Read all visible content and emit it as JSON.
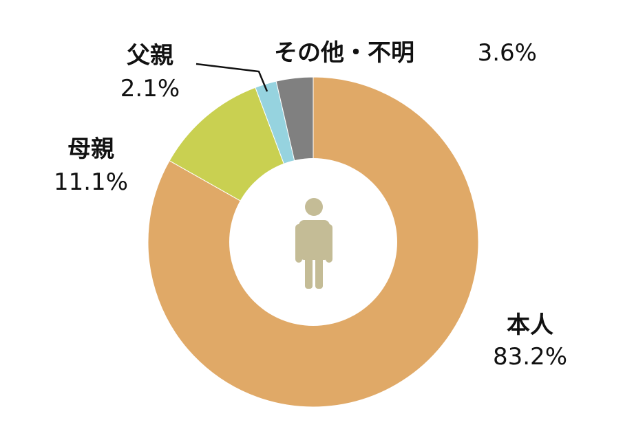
{
  "chart_data": {
    "type": "pie",
    "donut": true,
    "categories": [
      "本人",
      "母親",
      "父親",
      "その他・不明"
    ],
    "values": [
      83.2,
      11.1,
      2.1,
      3.6
    ],
    "value_labels": [
      "83.2%",
      "11.1%",
      "2.1%",
      "3.6%"
    ],
    "colors": [
      "#E0A967",
      "#C9D051",
      "#96D3DF",
      "#808080"
    ],
    "start": "top",
    "direction": "clockwise",
    "center_icon": "person-icon",
    "center_icon_color": "#C4BC96"
  }
}
